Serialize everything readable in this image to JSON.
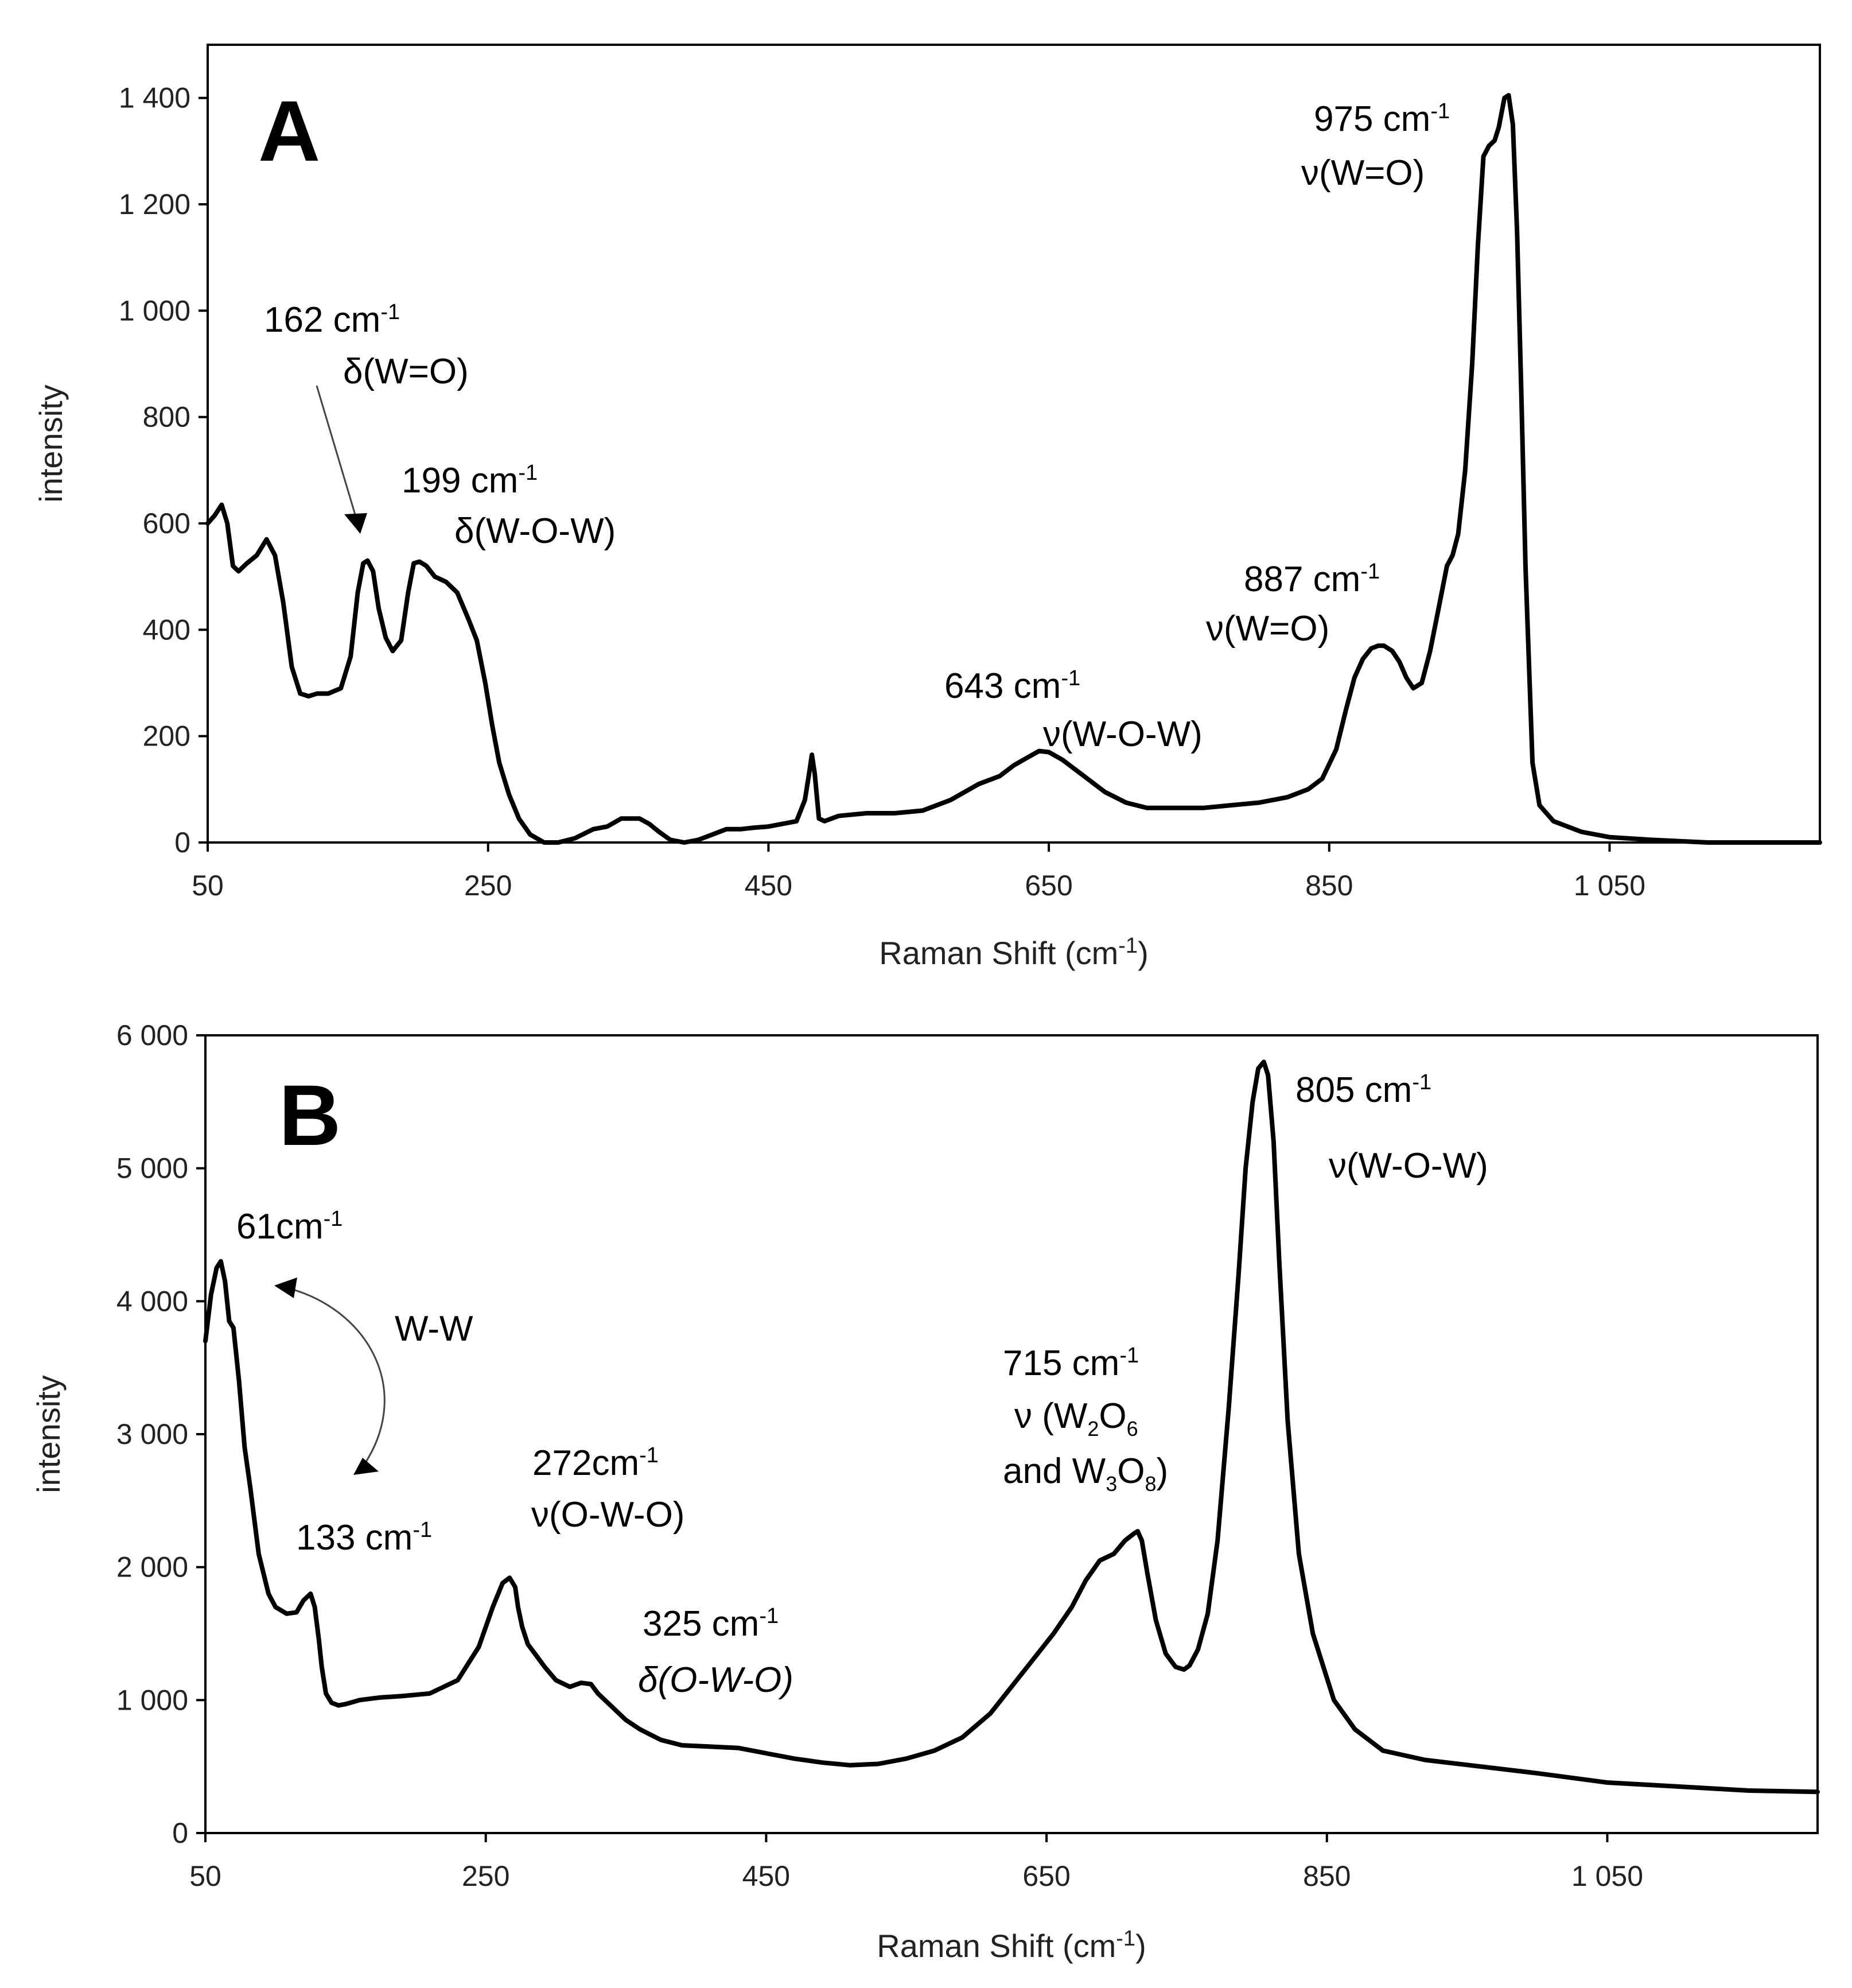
{
  "chart_data": [
    {
      "panel": "A",
      "type": "line",
      "xlabel": "Raman Shift (cm",
      "xlabel_sup": "-1",
      "xlabel_close": ")",
      "ylabel": "intensity",
      "xlim": [
        50,
        1200
      ],
      "ylim": [
        0,
        1500
      ],
      "xticks": [
        50,
        250,
        450,
        650,
        850,
        1050
      ],
      "xtick_labels": [
        "50",
        "250",
        "450",
        "650",
        "850",
        "1 050"
      ],
      "yticks": [
        0,
        200,
        400,
        600,
        800,
        1000,
        1200,
        1400
      ],
      "ytick_labels": [
        "0",
        "200",
        "400",
        "600",
        "800",
        "1 000",
        "1 200",
        "1 400"
      ],
      "series": [
        {
          "name": "Spectrum A",
          "x": [
            50,
            55,
            60,
            64,
            68,
            72,
            78,
            85,
            92,
            98,
            104,
            110,
            116,
            122,
            128,
            136,
            145,
            152,
            157,
            161,
            164,
            168,
            172,
            177,
            182,
            188,
            193,
            197,
            201,
            206,
            212,
            220,
            228,
            236,
            242,
            248,
            253,
            258,
            265,
            272,
            280,
            290,
            300,
            312,
            325,
            335,
            345,
            358,
            365,
            372,
            380,
            390,
            400,
            410,
            420,
            430,
            440,
            450,
            460,
            470,
            476,
            479,
            481,
            483,
            486,
            490,
            500,
            520,
            540,
            560,
            580,
            600,
            615,
            625,
            635,
            643,
            650,
            660,
            675,
            690,
            705,
            720,
            740,
            760,
            780,
            800,
            820,
            835,
            845,
            855,
            862,
            868,
            874,
            880,
            885,
            889,
            895,
            900,
            905,
            910,
            916,
            922,
            928,
            934,
            938,
            942,
            947,
            952,
            956,
            960,
            964,
            968,
            971,
            975,
            978,
            981,
            984,
            987,
            990,
            995,
            1000,
            1010,
            1030,
            1050,
            1080,
            1120,
            1160,
            1200
          ],
          "y": [
            600,
            615,
            635,
            600,
            520,
            510,
            525,
            540,
            570,
            540,
            450,
            330,
            280,
            275,
            280,
            280,
            290,
            350,
            470,
            525,
            530,
            510,
            440,
            385,
            360,
            380,
            470,
            525,
            528,
            520,
            500,
            490,
            470,
            420,
            380,
            300,
            220,
            150,
            90,
            45,
            15,
            0,
            0,
            8,
            25,
            30,
            45,
            45,
            35,
            20,
            5,
            0,
            5,
            15,
            25,
            25,
            28,
            30,
            35,
            40,
            80,
            130,
            165,
            130,
            45,
            40,
            50,
            55,
            55,
            60,
            80,
            110,
            125,
            145,
            160,
            172,
            170,
            155,
            125,
            95,
            75,
            65,
            65,
            65,
            70,
            75,
            85,
            100,
            120,
            175,
            250,
            310,
            345,
            365,
            370,
            370,
            360,
            340,
            310,
            290,
            300,
            360,
            440,
            520,
            540,
            580,
            700,
            900,
            1120,
            1290,
            1310,
            1320,
            1345,
            1400,
            1405,
            1350,
            1150,
            850,
            520,
            150,
            70,
            40,
            20,
            10,
            5,
            0,
            0,
            0
          ],
          "color": "#000000"
        }
      ],
      "annotations": [
        {
          "label": "975 cm",
          "sup": "-1",
          "mode": "ν(W=O)"
        },
        {
          "label": "162 cm",
          "sup": "-1",
          "mode": "δ(W=O)"
        },
        {
          "label": "199 cm",
          "sup": "-1",
          "mode": "δ(W-O-W)"
        },
        {
          "label": "887 cm",
          "sup": "-1",
          "mode": "ν(W=O)"
        },
        {
          "label": "643 cm",
          "sup": "-1",
          "mode": "ν(W-O-W)"
        }
      ]
    },
    {
      "panel": "B",
      "type": "line",
      "xlabel": "Raman Shift (cm",
      "xlabel_sup": "-1",
      "xlabel_close": ")",
      "ylabel": "intensity",
      "xlim": [
        50,
        1200
      ],
      "ylim": [
        0,
        6000
      ],
      "xticks": [
        50,
        250,
        450,
        650,
        850,
        1050
      ],
      "xtick_labels": [
        "50",
        "250",
        "450",
        "650",
        "850",
        "1 050"
      ],
      "yticks": [
        0,
        1000,
        2000,
        3000,
        4000,
        5000,
        6000
      ],
      "ytick_labels": [
        "0",
        "1 000",
        "2 000",
        "3 000",
        "4 000",
        "5 000",
        "6 000"
      ],
      "series": [
        {
          "name": "Spectrum B",
          "x": [
            50,
            54,
            58,
            61,
            64,
            67,
            70,
            74,
            78,
            82,
            88,
            95,
            100,
            108,
            115,
            120,
            125,
            128,
            131,
            133,
            136,
            140,
            145,
            150,
            160,
            175,
            190,
            210,
            230,
            245,
            255,
            262,
            267,
            271,
            273,
            276,
            280,
            285,
            292,
            300,
            310,
            318,
            325,
            330,
            340,
            350,
            360,
            375,
            390,
            410,
            430,
            450,
            470,
            490,
            510,
            530,
            550,
            570,
            590,
            610,
            625,
            640,
            655,
            668,
            678,
            688,
            698,
            706,
            712,
            715,
            718,
            722,
            728,
            735,
            742,
            748,
            752,
            758,
            765,
            772,
            780,
            787,
            792,
            797,
            801,
            805,
            808,
            812,
            816,
            822,
            830,
            840,
            855,
            870,
            890,
            920,
            960,
            1000,
            1050,
            1100,
            1150,
            1200
          ],
          "y": [
            3700,
            4050,
            4250,
            4300,
            4150,
            3850,
            3800,
            3400,
            2900,
            2600,
            2100,
            1800,
            1700,
            1650,
            1660,
            1750,
            1800,
            1700,
            1450,
            1250,
            1050,
            980,
            960,
            970,
            1000,
            1020,
            1030,
            1050,
            1150,
            1400,
            1700,
            1880,
            1920,
            1850,
            1700,
            1550,
            1420,
            1350,
            1250,
            1150,
            1100,
            1130,
            1120,
            1050,
            950,
            850,
            780,
            700,
            660,
            650,
            640,
            600,
            560,
            530,
            510,
            520,
            560,
            620,
            720,
            900,
            1100,
            1300,
            1500,
            1700,
            1900,
            2050,
            2100,
            2200,
            2250,
            2270,
            2200,
            1950,
            1600,
            1350,
            1250,
            1230,
            1260,
            1380,
            1650,
            2200,
            3200,
            4200,
            5000,
            5500,
            5750,
            5800,
            5700,
            5200,
            4300,
            3100,
            2100,
            1500,
            1000,
            780,
            620,
            550,
            500,
            450,
            380,
            350,
            320,
            310
          ],
          "color": "#000000"
        }
      ],
      "annotations": [
        {
          "label": "805 cm",
          "sup": "-1",
          "mode": "ν(W-O-W)"
        },
        {
          "label": "61cm",
          "sup": "-1"
        },
        {
          "label": "W-W"
        },
        {
          "label": "133 cm",
          "sup": "-1"
        },
        {
          "label": "272cm",
          "sup": "-1",
          "mode": "ν(O-W-O)"
        },
        {
          "label": "325 cm",
          "sup": "-1",
          "mode": "δ(O-W-O)"
        },
        {
          "label": "715 cm",
          "sup": "-1",
          "mode_line1": "ν (W",
          "mode_line2": "and W"
        }
      ]
    }
  ]
}
